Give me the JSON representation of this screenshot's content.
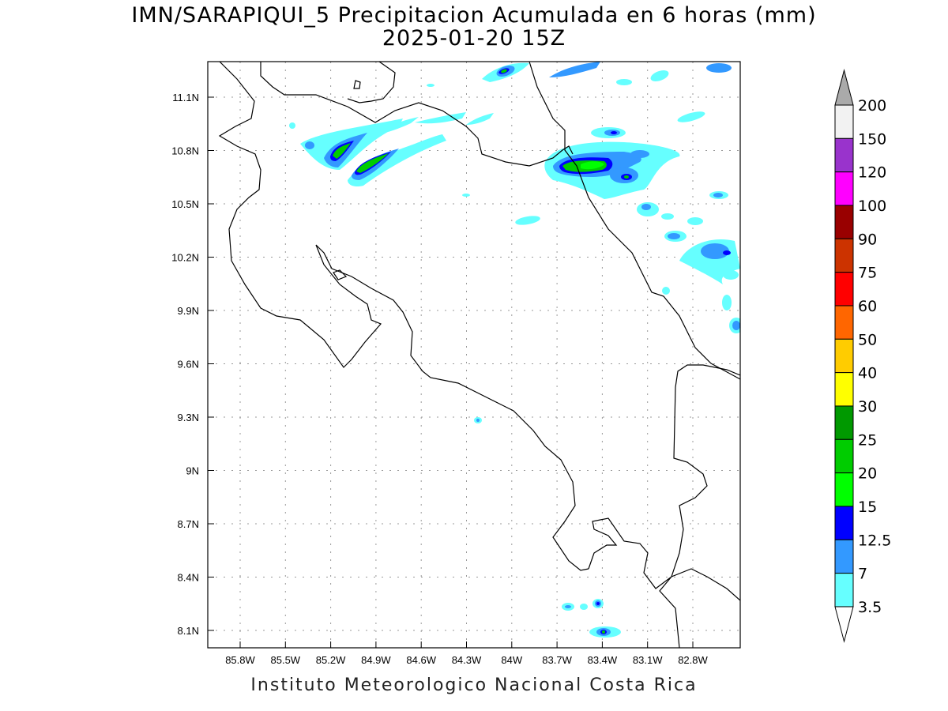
{
  "title": "IMN/SARAPIQUI_5 Precipitacion Acumulada en 6 horas (mm)",
  "subtitle": "2025-01-20 15Z",
  "footer": "Instituto Meteorologico Nacional Costa Rica",
  "map": {
    "lon_ticks": [
      "85.8W",
      "85.5W",
      "85.2W",
      "84.9W",
      "84.6W",
      "84.3W",
      "84W",
      "83.7W",
      "83.4W",
      "83.1W",
      "82.8W"
    ],
    "lat_ticks": [
      "11.1N",
      "10.8N",
      "10.5N",
      "10.2N",
      "9.9N",
      "9.6N",
      "9.3N",
      "9N",
      "8.7N",
      "8.4N",
      "8.1N"
    ]
  },
  "colorbar": {
    "labels": [
      "200",
      "150",
      "120",
      "100",
      "90",
      "75",
      "60",
      "50",
      "40",
      "30",
      "25",
      "20",
      "15",
      "12.5",
      "7",
      "3.5"
    ],
    "colors": [
      "#f2f2f2",
      "#9933cc",
      "#ff00ff",
      "#990000",
      "#cc3300",
      "#ff0000",
      "#ff6600",
      "#ffcc00",
      "#ffff00",
      "#009900",
      "#00cc00",
      "#00ff00",
      "#0000ff",
      "#3399ff",
      "#66ffff"
    ],
    "over_color": "#aaaaaa",
    "under_color": "#ffffff"
  }
}
